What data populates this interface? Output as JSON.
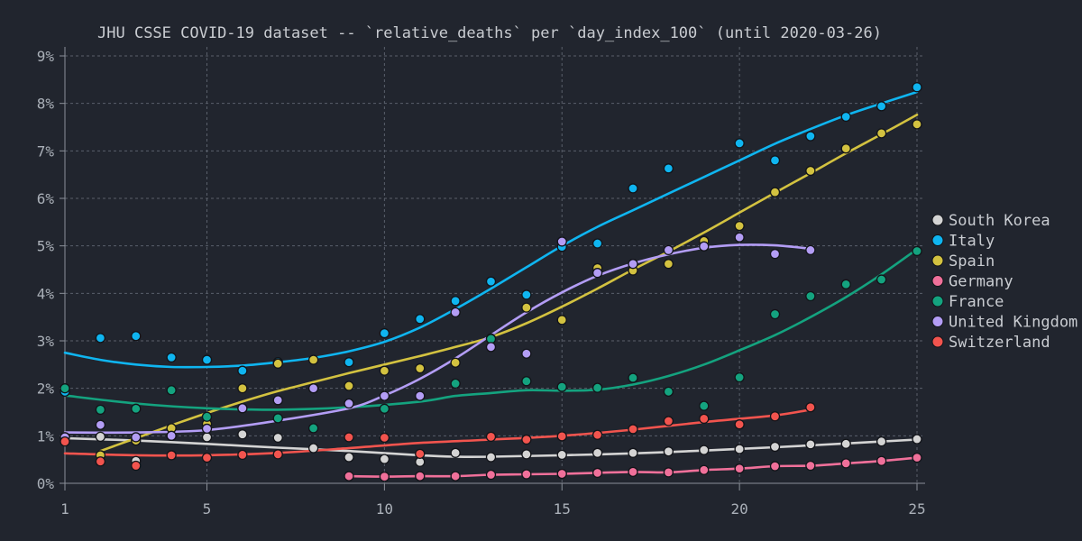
{
  "chart_data": {
    "type": "scatter",
    "title": "JHU CSSE COVID-19 dataset -- `relative_deaths` per `day_index_100` (until 2020-03-26)",
    "xlabel": "",
    "ylabel": "",
    "xlim": [
      1,
      25
    ],
    "ylim": [
      0,
      9
    ],
    "x_ticks": [
      1,
      5,
      10,
      15,
      20,
      25
    ],
    "y_ticks": [
      0,
      1,
      2,
      3,
      4,
      5,
      6,
      7,
      8,
      9
    ],
    "y_tick_format": "percent",
    "grid": true,
    "legend_position": "right",
    "series": [
      {
        "name": "South Korea",
        "color": "#d4d4d4",
        "points": [
          [
            1,
            0.97
          ],
          [
            2,
            0.98
          ],
          [
            3,
            0.47
          ],
          [
            4,
            1.0
          ],
          [
            5,
            0.97
          ],
          [
            6,
            1.03
          ],
          [
            7,
            0.96
          ],
          [
            8,
            0.74
          ],
          [
            9,
            0.55
          ],
          [
            10,
            0.51
          ],
          [
            11,
            0.45
          ],
          [
            12,
            0.64
          ],
          [
            13,
            0.55
          ],
          [
            14,
            0.61
          ],
          [
            15,
            0.6
          ],
          [
            16,
            0.64
          ],
          [
            17,
            0.64
          ],
          [
            18,
            0.67
          ],
          [
            19,
            0.7
          ],
          [
            20,
            0.72
          ],
          [
            21,
            0.77
          ],
          [
            22,
            0.82
          ],
          [
            23,
            0.83
          ],
          [
            24,
            0.88
          ],
          [
            25,
            0.93
          ]
        ],
        "trend": [
          [
            1,
            0.95
          ],
          [
            3,
            0.9
          ],
          [
            5,
            0.83
          ],
          [
            7,
            0.75
          ],
          [
            9,
            0.68
          ],
          [
            11,
            0.59
          ],
          [
            12,
            0.56
          ],
          [
            13,
            0.56
          ],
          [
            15,
            0.59
          ],
          [
            17,
            0.63
          ],
          [
            19,
            0.69
          ],
          [
            21,
            0.76
          ],
          [
            23,
            0.84
          ],
          [
            25,
            0.92
          ]
        ]
      },
      {
        "name": "Italy",
        "color": "#0fb5f0",
        "points": [
          [
            1,
            1.93
          ],
          [
            2,
            3.06
          ],
          [
            3,
            3.1
          ],
          [
            4,
            2.65
          ],
          [
            5,
            2.6
          ],
          [
            6,
            2.37
          ],
          [
            7,
            2.55
          ],
          [
            8,
            2.0
          ],
          [
            9,
            2.55
          ],
          [
            10,
            3.16
          ],
          [
            11,
            3.46
          ],
          [
            12,
            3.84
          ],
          [
            13,
            4.25
          ],
          [
            14,
            3.97
          ],
          [
            15,
            4.98
          ],
          [
            16,
            5.05
          ],
          [
            17,
            6.21
          ],
          [
            18,
            6.63
          ],
          [
            19,
            5.11
          ],
          [
            20,
            7.16
          ],
          [
            21,
            6.8
          ],
          [
            22,
            7.31
          ],
          [
            23,
            7.72
          ],
          [
            24,
            7.94
          ],
          [
            25,
            8.34
          ]
        ],
        "trend": [
          [
            1,
            2.75
          ],
          [
            2,
            2.6
          ],
          [
            3,
            2.5
          ],
          [
            4,
            2.45
          ],
          [
            5,
            2.45
          ],
          [
            6,
            2.48
          ],
          [
            7,
            2.55
          ],
          [
            8,
            2.64
          ],
          [
            9,
            2.78
          ],
          [
            10,
            2.98
          ],
          [
            11,
            3.28
          ],
          [
            12,
            3.67
          ],
          [
            13,
            4.1
          ],
          [
            14,
            4.55
          ],
          [
            15,
            5.0
          ],
          [
            16,
            5.4
          ],
          [
            17,
            5.75
          ],
          [
            18,
            6.1
          ],
          [
            19,
            6.45
          ],
          [
            20,
            6.8
          ],
          [
            21,
            7.15
          ],
          [
            22,
            7.46
          ],
          [
            23,
            7.75
          ],
          [
            24,
            8.0
          ],
          [
            25,
            8.24
          ]
        ]
      },
      {
        "name": "Spain",
        "color": "#d3c240",
        "points": [
          [
            2,
            0.59
          ],
          [
            3,
            0.9
          ],
          [
            4,
            1.16
          ],
          [
            5,
            1.25
          ],
          [
            6,
            2.0
          ],
          [
            7,
            2.52
          ],
          [
            8,
            2.6
          ],
          [
            9,
            2.05
          ],
          [
            10,
            2.37
          ],
          [
            11,
            2.42
          ],
          [
            12,
            2.54
          ],
          [
            13,
            3.05
          ],
          [
            14,
            3.7
          ],
          [
            15,
            3.44
          ],
          [
            16,
            4.53
          ],
          [
            17,
            4.48
          ],
          [
            18,
            4.62
          ],
          [
            19,
            5.1
          ],
          [
            20,
            5.42
          ],
          [
            21,
            6.13
          ],
          [
            22,
            6.58
          ],
          [
            23,
            7.05
          ],
          [
            24,
            7.37
          ],
          [
            25,
            7.56
          ]
        ],
        "trend": [
          [
            2,
            0.68
          ],
          [
            3,
            0.95
          ],
          [
            4,
            1.22
          ],
          [
            5,
            1.48
          ],
          [
            6,
            1.72
          ],
          [
            7,
            1.94
          ],
          [
            8,
            2.13
          ],
          [
            9,
            2.32
          ],
          [
            10,
            2.5
          ],
          [
            11,
            2.68
          ],
          [
            12,
            2.87
          ],
          [
            13,
            3.08
          ],
          [
            14,
            3.37
          ],
          [
            15,
            3.72
          ],
          [
            16,
            4.1
          ],
          [
            17,
            4.5
          ],
          [
            18,
            4.88
          ],
          [
            19,
            5.28
          ],
          [
            20,
            5.7
          ],
          [
            21,
            6.12
          ],
          [
            22,
            6.53
          ],
          [
            23,
            6.95
          ],
          [
            24,
            7.35
          ],
          [
            25,
            7.76
          ]
        ]
      },
      {
        "name": "Germany",
        "color": "#f0709a",
        "points": [
          [
            9,
            0.15
          ],
          [
            10,
            0.14
          ],
          [
            11,
            0.15
          ],
          [
            12,
            0.15
          ],
          [
            13,
            0.18
          ],
          [
            14,
            0.19
          ],
          [
            15,
            0.2
          ],
          [
            16,
            0.22
          ],
          [
            17,
            0.24
          ],
          [
            18,
            0.23
          ],
          [
            19,
            0.28
          ],
          [
            20,
            0.31
          ],
          [
            21,
            0.36
          ],
          [
            22,
            0.37
          ],
          [
            23,
            0.42
          ],
          [
            24,
            0.47
          ],
          [
            25,
            0.54
          ]
        ]
      },
      {
        "name": "France",
        "color": "#14a37f",
        "points": [
          [
            1,
            2.0
          ],
          [
            2,
            1.55
          ],
          [
            3,
            1.57
          ],
          [
            4,
            1.96
          ],
          [
            5,
            1.4
          ],
          [
            6,
            1.58
          ],
          [
            7,
            1.37
          ],
          [
            8,
            1.16
          ],
          [
            9,
            1.68
          ],
          [
            10,
            1.57
          ],
          [
            11,
            1.84
          ],
          [
            12,
            2.1
          ],
          [
            13,
            3.04
          ],
          [
            14,
            2.15
          ],
          [
            15,
            2.03
          ],
          [
            16,
            2.01
          ],
          [
            17,
            2.22
          ],
          [
            18,
            1.93
          ],
          [
            19,
            1.63
          ],
          [
            20,
            2.23
          ],
          [
            21,
            3.56
          ],
          [
            22,
            3.94
          ],
          [
            23,
            4.19
          ],
          [
            24,
            4.29
          ],
          [
            25,
            4.89
          ]
        ],
        "trend": [
          [
            1,
            1.85
          ],
          [
            3,
            1.68
          ],
          [
            5,
            1.58
          ],
          [
            7,
            1.55
          ],
          [
            9,
            1.6
          ],
          [
            11,
            1.72
          ],
          [
            12,
            1.84
          ],
          [
            13,
            1.9
          ],
          [
            14,
            1.96
          ],
          [
            15,
            1.95
          ],
          [
            16,
            1.97
          ],
          [
            17,
            2.08
          ],
          [
            18,
            2.26
          ],
          [
            19,
            2.5
          ],
          [
            20,
            2.8
          ],
          [
            21,
            3.12
          ],
          [
            22,
            3.5
          ],
          [
            23,
            3.92
          ],
          [
            24,
            4.4
          ],
          [
            25,
            4.93
          ]
        ]
      },
      {
        "name": "United Kingdom",
        "color": "#b39df5",
        "points": [
          [
            1,
            0.97
          ],
          [
            2,
            1.23
          ],
          [
            3,
            0.97
          ],
          [
            4,
            1.0
          ],
          [
            5,
            1.15
          ],
          [
            6,
            1.58
          ],
          [
            7,
            1.75
          ],
          [
            8,
            2.0
          ],
          [
            9,
            1.68
          ],
          [
            10,
            1.84
          ],
          [
            11,
            1.84
          ],
          [
            12,
            3.6
          ],
          [
            13,
            2.87
          ],
          [
            14,
            2.73
          ],
          [
            15,
            5.09
          ],
          [
            16,
            4.43
          ],
          [
            17,
            4.62
          ],
          [
            18,
            4.91
          ],
          [
            19,
            4.99
          ],
          [
            20,
            5.18
          ],
          [
            21,
            4.83
          ],
          [
            22,
            4.91
          ]
        ],
        "trend": [
          [
            1,
            1.07
          ],
          [
            3,
            1.07
          ],
          [
            5,
            1.12
          ],
          [
            7,
            1.32
          ],
          [
            9,
            1.58
          ],
          [
            10,
            1.85
          ],
          [
            11,
            2.2
          ],
          [
            12,
            2.63
          ],
          [
            13,
            3.12
          ],
          [
            14,
            3.6
          ],
          [
            15,
            4.02
          ],
          [
            16,
            4.37
          ],
          [
            17,
            4.63
          ],
          [
            18,
            4.82
          ],
          [
            19,
            4.96
          ],
          [
            20,
            5.02
          ],
          [
            21,
            5.01
          ],
          [
            22,
            4.94
          ]
        ]
      },
      {
        "name": "Switzerland",
        "color": "#f2544e",
        "points": [
          [
            1,
            0.88
          ],
          [
            2,
            0.46
          ],
          [
            3,
            0.37
          ],
          [
            4,
            0.59
          ],
          [
            5,
            0.54
          ],
          [
            6,
            0.6
          ],
          [
            7,
            0.61
          ],
          [
            9,
            0.97
          ],
          [
            10,
            0.96
          ],
          [
            11,
            0.62
          ],
          [
            13,
            0.98
          ],
          [
            14,
            0.92
          ],
          [
            15,
            0.99
          ],
          [
            16,
            1.02
          ],
          [
            17,
            1.14
          ],
          [
            18,
            1.31
          ],
          [
            19,
            1.36
          ],
          [
            20,
            1.24
          ],
          [
            21,
            1.41
          ],
          [
            22,
            1.6
          ]
        ],
        "trend": [
          [
            1,
            0.63
          ],
          [
            3,
            0.59
          ],
          [
            5,
            0.59
          ],
          [
            7,
            0.64
          ],
          [
            9,
            0.74
          ],
          [
            11,
            0.85
          ],
          [
            13,
            0.92
          ],
          [
            15,
            1.0
          ],
          [
            17,
            1.13
          ],
          [
            19,
            1.29
          ],
          [
            21,
            1.43
          ],
          [
            22,
            1.55
          ]
        ]
      }
    ]
  }
}
